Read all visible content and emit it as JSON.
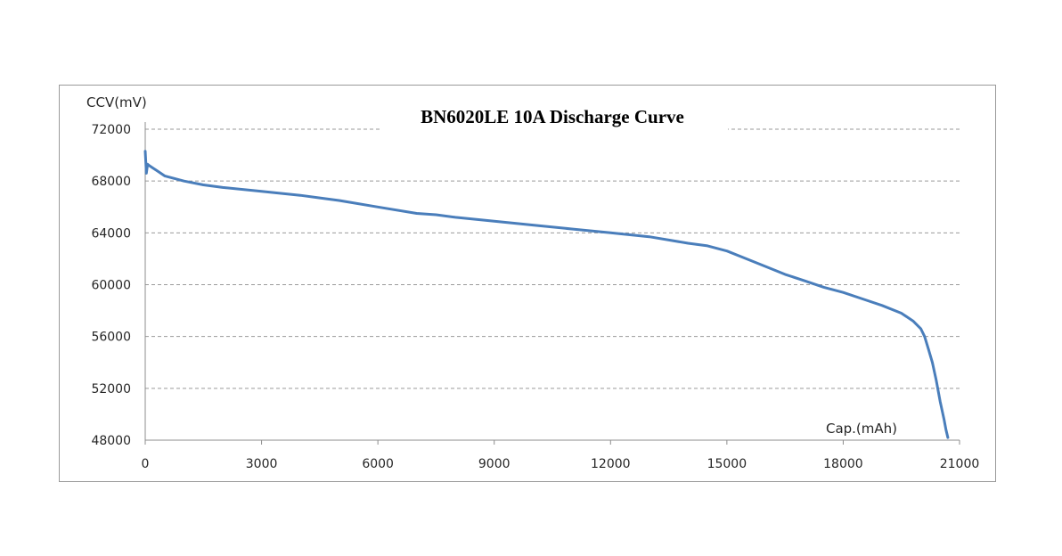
{
  "chart_data": {
    "type": "line",
    "title": "BN6020LE 10A Discharge Curve",
    "ylabel": "CCV(mV)",
    "xlabel": "Cap.(mAh)",
    "xlim": [
      0,
      21000
    ],
    "ylim": [
      48000,
      72000
    ],
    "x_ticks": [
      "0",
      "3000",
      "6000",
      "9000",
      "12000",
      "15000",
      "18000",
      "21000"
    ],
    "y_ticks": [
      "72000",
      "68000",
      "64000",
      "60000",
      "56000",
      "52000",
      "48000"
    ],
    "grid": "horizontal-dashed",
    "series_color": "#4a7ebb",
    "series": [
      {
        "x": [
          0,
          30,
          60,
          100,
          200,
          300,
          500,
          1000,
          1500,
          2000,
          3000,
          4000,
          4500,
          5000,
          6000,
          7000,
          7500,
          8000,
          9000,
          10000,
          11000,
          12000,
          13000,
          14000,
          14500,
          15000,
          15500,
          16000,
          16500,
          17000,
          17500,
          18000,
          18500,
          19000,
          19500,
          19800,
          20000,
          20100,
          20200,
          20300,
          20400,
          20500,
          20600,
          20650,
          20700
        ],
        "y": [
          70300,
          68600,
          69300,
          69200,
          69000,
          68800,
          68400,
          68000,
          67700,
          67500,
          67200,
          66900,
          66700,
          66500,
          66000,
          65500,
          65400,
          65200,
          64900,
          64600,
          64300,
          64000,
          63700,
          63200,
          63000,
          62600,
          62000,
          61400,
          60800,
          60300,
          59800,
          59400,
          58900,
          58400,
          57800,
          57200,
          56600,
          56000,
          55000,
          54000,
          52600,
          51000,
          49600,
          48800,
          48200
        ]
      }
    ]
  }
}
